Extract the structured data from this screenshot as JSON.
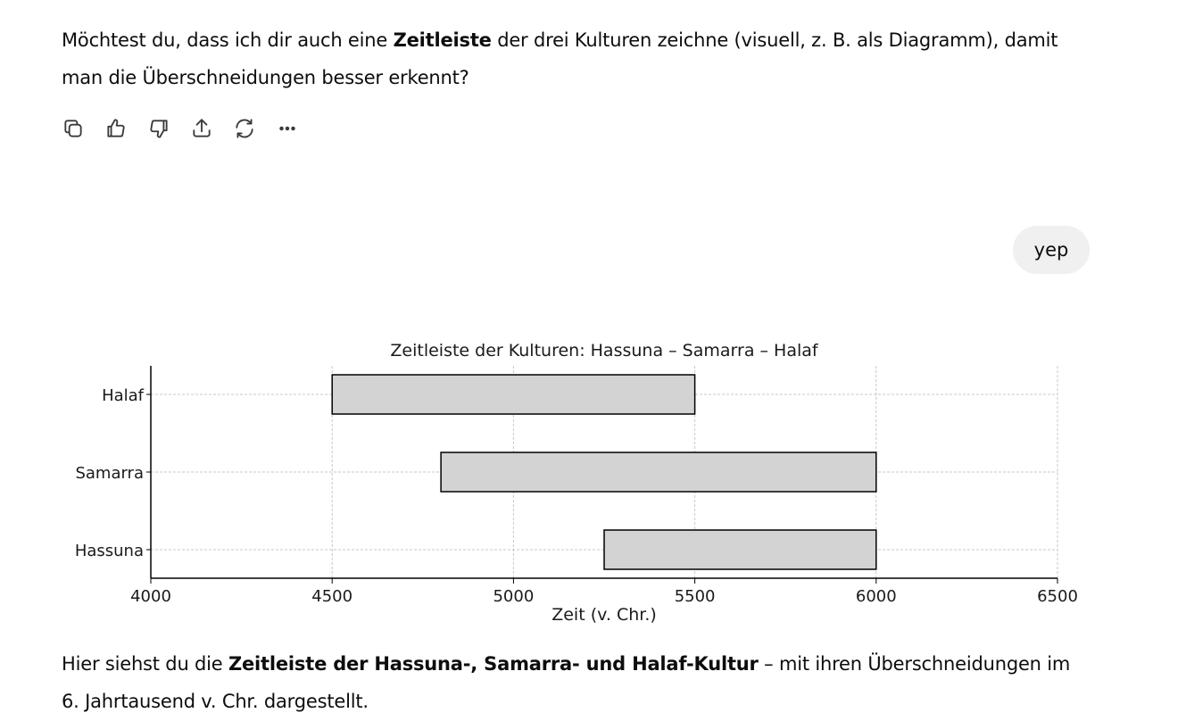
{
  "message1": {
    "t1": "Möchtest du, dass ich dir auch eine ",
    "b1": "Zeitleiste",
    "t2": " der drei Kulturen zeichne (visuell, z. B. als Diagramm), damit man die Überschneidungen besser erkennt?"
  },
  "actions": [
    {
      "icon": "copy-icon"
    },
    {
      "icon": "thumbs-up-icon"
    },
    {
      "icon": "thumbs-down-icon"
    },
    {
      "icon": "share-icon"
    },
    {
      "icon": "regenerate-icon"
    },
    {
      "icon": "more-icon"
    }
  ],
  "user_message": "yep",
  "chart_data": {
    "type": "bar",
    "orientation": "horizontal-range",
    "title": "Zeitleiste der Kulturen: Hassuna – Samarra – Halaf",
    "xlabel": "Zeit (v. Chr.)",
    "ylabel": "",
    "xlim": [
      4000,
      6500
    ],
    "xticks": [
      "4000",
      "4500",
      "5000",
      "5500",
      "6000",
      "6500"
    ],
    "categories": [
      "Halaf",
      "Samarra",
      "Hassuna"
    ],
    "ranges": [
      {
        "name": "Halaf",
        "start": 4500,
        "end": 5500
      },
      {
        "name": "Samarra",
        "start": 4800,
        "end": 6000
      },
      {
        "name": "Hassuna",
        "start": 5250,
        "end": 6000
      }
    ],
    "grid": true,
    "bar_color": "#d3d3d3",
    "edge_color": "#000000"
  },
  "message2": {
    "t1": "Hier siehst du die ",
    "b1": "Zeitleiste der Hassuna-, Samarra- und Halaf-Kultur",
    "t2": " – mit ihren Überschneidungen im 6. Jahrtausend v. Chr. dargestellt."
  }
}
